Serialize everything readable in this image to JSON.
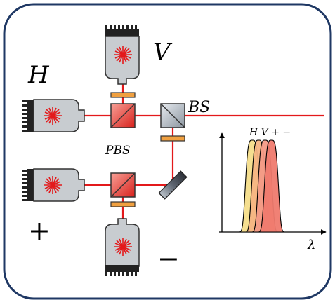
{
  "labels": {
    "h": "H",
    "v": "V",
    "plus": "+",
    "minus": "−",
    "bs": "BS",
    "pbs": "PBS",
    "lambda": "λ",
    "spectrum_legend": "H V + −"
  },
  "colors": {
    "frame_border": "#1f3864",
    "beam": "#e3191b",
    "laser_body": "#c8ccd0",
    "laser_body_edge": "#333333",
    "pbs_fill": "#e8433a",
    "bs_fill": "#b9c1c9",
    "waveplate": "#f0a040",
    "mirror": "#6c7480",
    "peak_h": "#f4dd8a",
    "peak_v": "#f6b483",
    "peak_plus": "#f39a86",
    "peak_minus": "#ef7a6e"
  },
  "spectrum": {
    "series": [
      {
        "name": "H",
        "center": 0.22
      },
      {
        "name": "V",
        "center": 0.28
      },
      {
        "name": "+",
        "center": 0.34
      },
      {
        "name": "−",
        "center": 0.4
      }
    ]
  }
}
